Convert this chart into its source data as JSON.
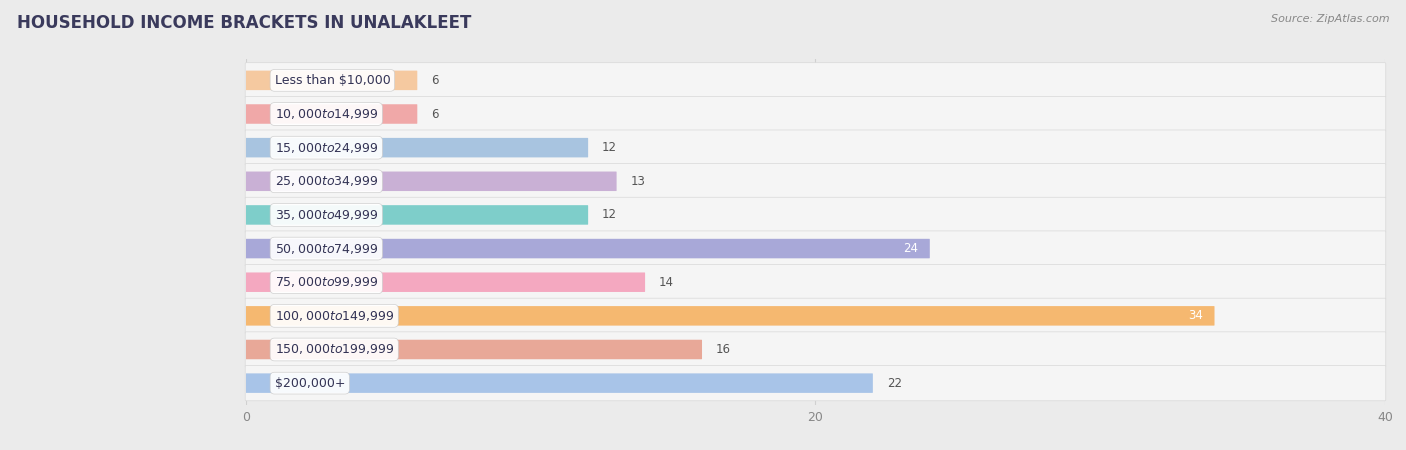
{
  "title": "HOUSEHOLD INCOME BRACKETS IN UNALAKLEET",
  "source": "Source: ZipAtlas.com",
  "categories": [
    "Less than $10,000",
    "$10,000 to $14,999",
    "$15,000 to $24,999",
    "$25,000 to $34,999",
    "$35,000 to $49,999",
    "$50,000 to $74,999",
    "$75,000 to $99,999",
    "$100,000 to $149,999",
    "$150,000 to $199,999",
    "$200,000+"
  ],
  "values": [
    6,
    6,
    12,
    13,
    12,
    24,
    14,
    34,
    16,
    22
  ],
  "bar_colors": [
    "#f5c9a0",
    "#f0a8a8",
    "#a8c4e0",
    "#c9b0d5",
    "#7ececa",
    "#a8a8d8",
    "#f4a8c0",
    "#f5b870",
    "#e8a898",
    "#a8c4e8"
  ],
  "xlim": [
    0,
    40
  ],
  "xticks": [
    0,
    20,
    40
  ],
  "background_color": "#ebebeb",
  "row_bg_color": "#f5f5f5",
  "bar_track_color": "#e0e0e0",
  "label_bg_color": "#ffffff",
  "title_fontsize": 12,
  "label_fontsize": 9,
  "value_fontsize": 8.5,
  "title_color": "#3a3a5c",
  "label_color": "#333355",
  "value_color_outside": "#555555",
  "value_color_inside": "#ffffff",
  "inside_threshold": 24,
  "grid_color": "#d0d0d0",
  "tick_color": "#888888"
}
